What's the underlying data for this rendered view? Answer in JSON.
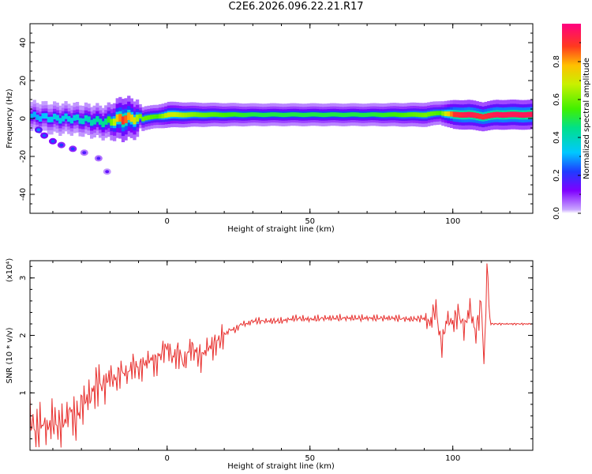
{
  "title": "C2E6.2026.096.22.21.R17",
  "colors": {
    "snr_line": "#e8312f",
    "spectral_low": "#7f00ff",
    "spectral_high": "#ff1e1e",
    "colorbar_top": "#ff0080"
  },
  "chart_data": [
    {
      "type": "heatmap",
      "title": "",
      "xlabel": "Height of straight line (km)",
      "ylabel": "Frequency (Hz)",
      "xlim": [
        -48,
        128
      ],
      "ylim": [
        -50,
        50
      ],
      "xticks": [
        0,
        50,
        100
      ],
      "yticks": [
        40,
        20,
        0,
        -20,
        -40
      ],
      "grid": false,
      "colorbar": {
        "label": "Normalized spectral amplitude",
        "range": [
          0,
          1
        ],
        "ticks": [
          0.0,
          0.2,
          0.4,
          0.6,
          0.8
        ]
      },
      "ridge": {
        "description_points_x_km": [
          -46,
          -40,
          -34,
          -28,
          -22,
          -16,
          -10,
          -4,
          0,
          10,
          20,
          30,
          40,
          50,
          60,
          70,
          80,
          90,
          95,
          100,
          105,
          110,
          115,
          120,
          128
        ],
        "frequency_hz": [
          1,
          0,
          0,
          -1,
          -2,
          0,
          0,
          1,
          2,
          2,
          2,
          2,
          2,
          2,
          2,
          2,
          2,
          2,
          3,
          2,
          2,
          1,
          2,
          2,
          2
        ],
        "amplitude": [
          0.3,
          0.35,
          0.35,
          0.4,
          0.45,
          0.9,
          0.6,
          0.55,
          0.7,
          0.6,
          0.55,
          0.5,
          0.5,
          0.5,
          0.5,
          0.5,
          0.55,
          0.6,
          0.55,
          0.9,
          0.95,
          0.9,
          0.95,
          0.95,
          0.95
        ]
      },
      "scattered_blobs": [
        {
          "x": -45,
          "y": -6,
          "amp": 0.15
        },
        {
          "x": -43,
          "y": -9,
          "amp": 0.12
        },
        {
          "x": -40,
          "y": -12,
          "amp": 0.12
        },
        {
          "x": -37,
          "y": -14,
          "amp": 0.1
        },
        {
          "x": -33,
          "y": -16,
          "amp": 0.1
        },
        {
          "x": -29,
          "y": -18,
          "amp": 0.05
        },
        {
          "x": -24,
          "y": -21,
          "amp": 0.05
        },
        {
          "x": -21,
          "y": -28,
          "amp": 0.03
        }
      ]
    },
    {
      "type": "line",
      "title": "",
      "xlabel": "Height of straight line (km)",
      "ylabel": "SNR (10 * v/v)",
      "yscale_label": "(x10⁴)",
      "xlim": [
        -48,
        128
      ],
      "ylim": [
        0,
        3.3
      ],
      "xticks": [
        0,
        50,
        100
      ],
      "yticks": [
        1,
        2,
        3
      ],
      "grid": false,
      "series": [
        {
          "x": [
            -48,
            -46,
            -44,
            -42,
            -40,
            -38,
            -36,
            -34,
            -32,
            -30,
            -28,
            -26,
            -24,
            -22,
            -20,
            -18,
            -16,
            -14,
            -12,
            -10,
            -8,
            -6,
            -4,
            -2,
            0,
            2,
            4,
            6,
            8,
            10,
            12,
            14,
            16,
            18,
            20,
            22,
            24,
            26,
            28,
            30,
            35,
            40,
            45,
            50,
            55,
            60,
            65,
            70,
            75,
            80,
            85,
            90,
            92,
            94,
            96,
            98,
            100,
            102,
            104,
            106,
            108,
            110,
            111,
            112,
            113,
            115,
            120,
            125,
            128
          ],
          "values": [
            0.6,
            0.3,
            0.5,
            0.35,
            0.55,
            0.4,
            0.5,
            0.7,
            0.5,
            0.8,
            0.9,
            1.0,
            1.2,
            1.1,
            1.3,
            1.2,
            1.4,
            1.3,
            1.5,
            1.4,
            1.5,
            1.6,
            1.5,
            1.7,
            1.8,
            1.6,
            1.7,
            1.5,
            1.8,
            1.7,
            1.6,
            1.8,
            1.8,
            1.9,
            2.0,
            2.1,
            2.1,
            2.2,
            2.2,
            2.25,
            2.25,
            2.25,
            2.3,
            2.28,
            2.3,
            2.3,
            2.3,
            2.3,
            2.3,
            2.3,
            2.28,
            2.3,
            2.2,
            2.5,
            1.8,
            2.3,
            2.2,
            2.4,
            2.1,
            2.5,
            2.0,
            2.6,
            1.4,
            3.3,
            2.2,
            2.2,
            2.2,
            2.2,
            2.2
          ]
        }
      ]
    }
  ]
}
